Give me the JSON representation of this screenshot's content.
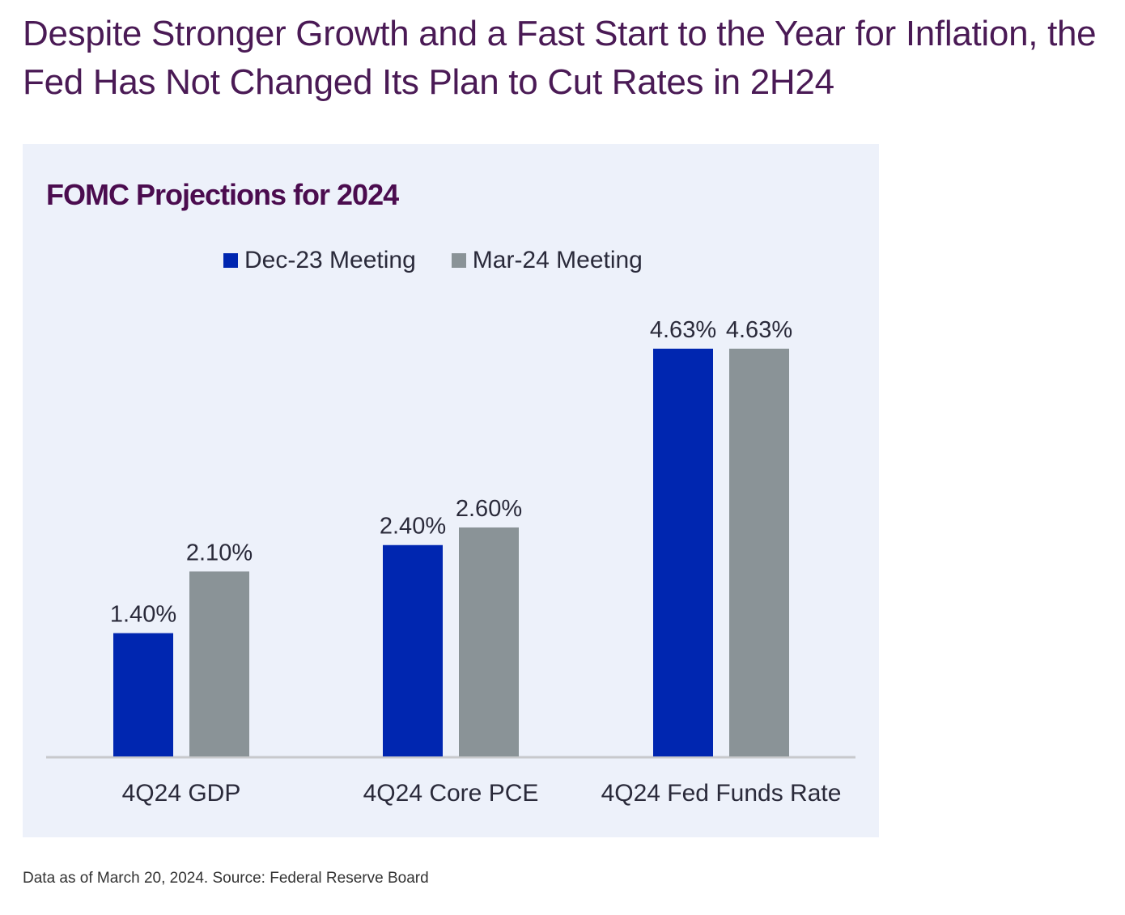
{
  "headline": "Despite Stronger Growth and a Fast Start to the Year for Inflation, the Fed Has Not Changed Its Plan to Cut Rates in 2H24",
  "footnote": "Data as of March 20, 2024. Source: Federal Reserve Board",
  "colors": {
    "dec": "#0026b0",
    "mar": "#8a9397",
    "panel": "#edf1fa"
  },
  "chart_data": {
    "type": "bar",
    "title": "FOMC Projections for 2024",
    "categories": [
      "4Q24 GDP",
      "4Q24 Core PCE",
      "4Q24 Fed Funds Rate"
    ],
    "series": [
      {
        "name": "Dec-23 Meeting",
        "values": [
          1.4,
          2.4,
          4.63
        ],
        "labels": [
          "1.40%",
          "2.40%",
          "4.63%"
        ]
      },
      {
        "name": "Mar-24 Meeting",
        "values": [
          2.1,
          2.6,
          4.63
        ],
        "labels": [
          "2.10%",
          "2.60%",
          "4.63%"
        ]
      }
    ],
    "ylim": [
      0,
      4.63
    ],
    "legend": "top-center",
    "grid": false
  }
}
